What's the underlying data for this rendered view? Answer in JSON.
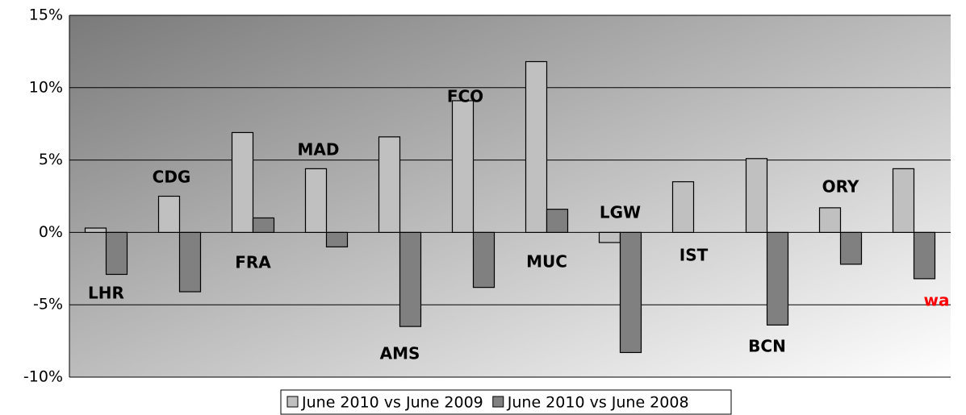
{
  "chart_data": {
    "type": "bar",
    "categories": [
      "LHR",
      "CDG",
      "FRA",
      "MAD",
      "AMS",
      "FCO",
      "MUC",
      "LGW",
      "IST",
      "BCN",
      "ORY",
      "wa"
    ],
    "category_colors": [
      "#000000",
      "#000000",
      "#000000",
      "#000000",
      "#000000",
      "#000000",
      "#000000",
      "#000000",
      "#000000",
      "#000000",
      "#000000",
      "#ff0000"
    ],
    "series": [
      {
        "name": "June 2010 vs June 2009",
        "color": "#c0c0c0",
        "values": [
          0.3,
          2.5,
          6.9,
          4.4,
          6.6,
          9.1,
          11.8,
          -0.7,
          3.5,
          5.1,
          1.7,
          4.4
        ]
      },
      {
        "name": "June 2010 vs June 2008",
        "color": "#808080",
        "values": [
          -2.9,
          -4.1,
          1.0,
          -1.0,
          -6.5,
          -3.8,
          1.6,
          -8.3,
          null,
          -6.4,
          -2.2,
          -3.2
        ]
      }
    ],
    "ylim": [
      -10,
      15
    ],
    "yticks": [
      {
        "value": -10,
        "label": "-10%"
      },
      {
        "value": -5,
        "label": "-5%"
      },
      {
        "value": 0,
        "label": "0%"
      },
      {
        "value": 5,
        "label": "5%"
      },
      {
        "value": 10,
        "label": "10%"
      },
      {
        "value": 15,
        "label": "15%"
      }
    ],
    "grid": true
  }
}
